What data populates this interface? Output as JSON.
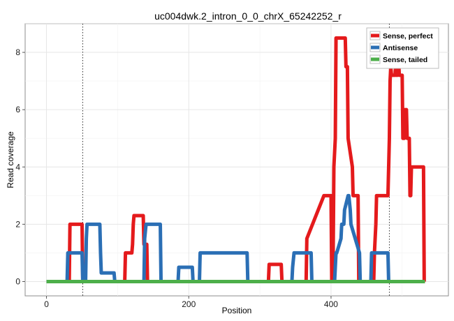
{
  "chart_data": {
    "type": "line",
    "title": "uc004dwk.2_intron_0_0_chrX_65242252_r",
    "xlabel": "Position",
    "ylabel": "Read coverage",
    "xlim": [
      -30,
      565
    ],
    "ylim": [
      -0.5,
      9.0
    ],
    "xticks": [
      0,
      200,
      400
    ],
    "yticks": [
      0,
      2,
      4,
      6,
      8
    ],
    "grid": true,
    "legend_position": "top-right",
    "vlines": [
      51,
      482
    ],
    "series": [
      {
        "name": "Sense, perfect",
        "color": "#e41a1c",
        "x": [
          0,
          32,
          33,
          50,
          51,
          52,
          110,
          111,
          120,
          121,
          122,
          123,
          136,
          137,
          141,
          142,
          312,
          313,
          330,
          331,
          365,
          366,
          390,
          391,
          400,
          401,
          403,
          404,
          406,
          407,
          420,
          421,
          423,
          424,
          430,
          431,
          438,
          439,
          460,
          461,
          463,
          464,
          465,
          466,
          480,
          481,
          482,
          483,
          484,
          485,
          490,
          491,
          492,
          493,
          495,
          496,
          500,
          501,
          503,
          504,
          506,
          507,
          510,
          511,
          512,
          513,
          515,
          516,
          530,
          531,
          532
        ],
        "y": [
          0,
          0,
          2,
          2,
          0,
          0,
          0,
          1,
          1,
          1.3,
          2,
          2.3,
          2.3,
          1.3,
          1.3,
          0,
          0,
          0.6,
          0.6,
          0,
          0,
          1.5,
          3,
          3,
          3,
          0,
          1,
          4,
          5,
          8.5,
          8.5,
          7.5,
          7.5,
          5,
          4,
          3,
          3,
          0,
          0,
          1,
          2,
          3,
          3,
          3,
          3,
          4,
          5,
          7,
          7.5,
          7.2,
          7.2,
          7.7,
          7.2,
          7.2,
          7.7,
          7.2,
          7.2,
          5,
          5,
          6,
          6,
          5,
          5,
          3,
          3,
          4,
          4,
          4,
          4,
          0,
          0
        ]
      },
      {
        "name": "Antisense",
        "color": "#2b6fb5",
        "x": [
          0,
          29,
          30,
          50,
          51,
          55,
          56,
          57,
          75,
          76,
          77,
          95,
          96,
          137,
          138,
          140,
          141,
          160,
          161,
          185,
          186,
          205,
          206,
          215,
          216,
          218,
          219,
          282,
          283,
          345,
          346,
          348,
          349,
          372,
          373,
          405,
          406,
          407,
          408,
          414,
          415,
          418,
          419,
          424,
          425,
          427,
          428,
          440,
          441,
          456,
          457,
          480,
          481,
          482
        ],
        "y": [
          0,
          0,
          1,
          1,
          0,
          0,
          1.5,
          2,
          2,
          1,
          0.3,
          0.3,
          0,
          0,
          1.5,
          2,
          2,
          2,
          0,
          0,
          0.5,
          0.5,
          0,
          0,
          1,
          1,
          1,
          1,
          0,
          0,
          0.5,
          1,
          1,
          1,
          0,
          0,
          0.5,
          1,
          1,
          1.5,
          2,
          2,
          2.5,
          3,
          3,
          2.5,
          2,
          1,
          0,
          0,
          1,
          1,
          0,
          0
        ]
      },
      {
        "name": "Sense, tailed",
        "color": "#4daf4a",
        "x": [
          0,
          532
        ],
        "y": [
          0,
          0
        ]
      }
    ]
  }
}
